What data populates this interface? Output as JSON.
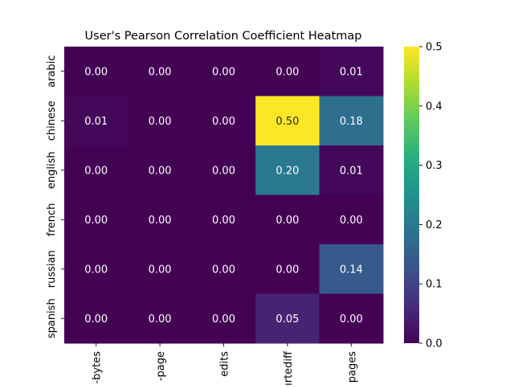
{
  "chart_data": {
    "type": "heatmap",
    "title": "User's Pearson Correlation Coefficient Heatmap",
    "xlabel": "",
    "ylabel": "",
    "rows": [
      "arabic",
      "chinese",
      "english",
      "french",
      "russian",
      "spanish"
    ],
    "columns": [
      "-bytes",
      "-page",
      "edits",
      "ırtediff",
      "pages"
    ],
    "values": [
      [
        0.0,
        0.0,
        0.0,
        0.0,
        0.01
      ],
      [
        0.01,
        0.0,
        0.0,
        0.5,
        0.18
      ],
      [
        0.0,
        0.0,
        0.0,
        0.2,
        0.01
      ],
      [
        0.0,
        0.0,
        0.0,
        0.0,
        0.0
      ],
      [
        0.0,
        0.0,
        0.0,
        0.0,
        0.14
      ],
      [
        0.0,
        0.0,
        0.0,
        0.05,
        0.0
      ]
    ],
    "colorbar": {
      "colormap": "viridis",
      "range": [
        0.0,
        0.5
      ],
      "ticks": [
        "0.0",
        "0.1",
        "0.2",
        "0.3",
        "0.4",
        "0.5"
      ]
    },
    "grid": false,
    "legend": "colorbar-right"
  }
}
